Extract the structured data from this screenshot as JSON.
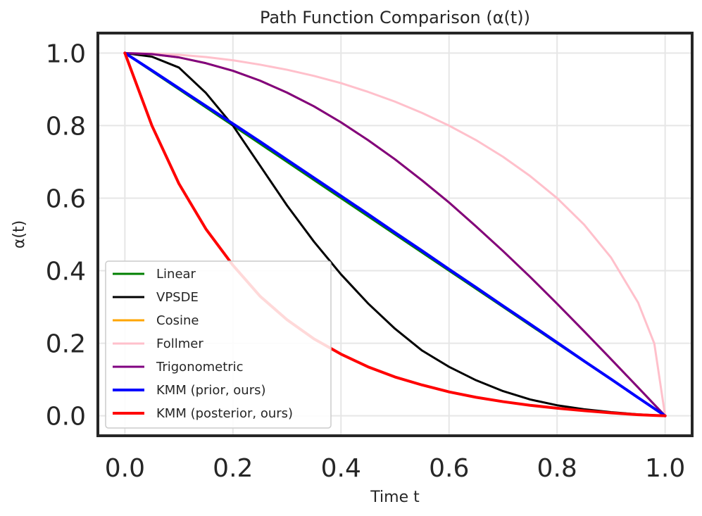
{
  "chart_data": {
    "type": "line",
    "title": "Path Function Comparison (α(t))",
    "xlabel": "Time t",
    "ylabel": "α(t)",
    "xlim": [
      -0.05,
      1.05
    ],
    "ylim": [
      -0.055,
      1.055
    ],
    "xticks": [
      0.0,
      0.2,
      0.4,
      0.6,
      0.8,
      1.0
    ],
    "xtick_labels": [
      "0.0",
      "0.2",
      "0.4",
      "0.6",
      "0.8",
      "1.0"
    ],
    "yticks": [
      0.0,
      0.2,
      0.4,
      0.6,
      0.8,
      1.0
    ],
    "ytick_labels": [
      "0.0",
      "0.2",
      "0.4",
      "0.6",
      "0.8",
      "1.0"
    ],
    "grid": true,
    "legend_position": "lower-left",
    "x": [
      0.0,
      0.05,
      0.1,
      0.15,
      0.2,
      0.25,
      0.3,
      0.35,
      0.4,
      0.45,
      0.5,
      0.55,
      0.6,
      0.65,
      0.7,
      0.75,
      0.8,
      0.85,
      0.9,
      0.95,
      0.98,
      1.0
    ],
    "series": [
      {
        "name": "Linear",
        "color": "#008000",
        "width": 3,
        "values": [
          1.0,
          0.95,
          0.9,
          0.85,
          0.8,
          0.75,
          0.7,
          0.65,
          0.6,
          0.55,
          0.5,
          0.45,
          0.4,
          0.35,
          0.3,
          0.25,
          0.2,
          0.15,
          0.1,
          0.05,
          0.02,
          0.0
        ]
      },
      {
        "name": "VPSDE",
        "color": "#000000",
        "width": 3,
        "values": [
          1.0,
          0.99,
          0.96,
          0.89,
          0.8,
          0.69,
          0.58,
          0.48,
          0.39,
          0.31,
          0.24,
          0.18,
          0.135,
          0.098,
          0.068,
          0.045,
          0.029,
          0.018,
          0.01,
          0.004,
          0.0015,
          0.0
        ]
      },
      {
        "name": "Cosine",
        "color": "#ffa500",
        "width": 3,
        "values": [
          1.0,
          0.997,
          0.988,
          0.972,
          0.951,
          0.924,
          0.891,
          0.853,
          0.809,
          0.76,
          0.707,
          0.649,
          0.588,
          0.522,
          0.454,
          0.383,
          0.309,
          0.233,
          0.156,
          0.078,
          0.031,
          0.0
        ]
      },
      {
        "name": "Follmer",
        "color": "#ffc0cb",
        "width": 3,
        "values": [
          1.0,
          0.999,
          0.995,
          0.989,
          0.98,
          0.968,
          0.954,
          0.937,
          0.917,
          0.893,
          0.866,
          0.835,
          0.8,
          0.76,
          0.714,
          0.661,
          0.6,
          0.527,
          0.436,
          0.312,
          0.199,
          0.0
        ]
      },
      {
        "name": "Trigonometric",
        "color": "#800080",
        "width": 3,
        "values": [
          1.0,
          0.997,
          0.988,
          0.972,
          0.951,
          0.924,
          0.891,
          0.853,
          0.809,
          0.76,
          0.707,
          0.649,
          0.588,
          0.522,
          0.454,
          0.383,
          0.309,
          0.233,
          0.156,
          0.078,
          0.031,
          0.0
        ]
      },
      {
        "name": "KMM (prior, ours)",
        "color": "#0000ff",
        "width": 4,
        "values": [
          1.0,
          0.952,
          0.903,
          0.854,
          0.805,
          0.756,
          0.706,
          0.656,
          0.606,
          0.556,
          0.505,
          0.455,
          0.404,
          0.354,
          0.303,
          0.253,
          0.202,
          0.151,
          0.101,
          0.05,
          0.02,
          0.0
        ]
      },
      {
        "name": "KMM (posterior, ours)",
        "color": "#ff0000",
        "width": 4,
        "values": [
          1.0,
          0.8,
          0.64,
          0.515,
          0.415,
          0.33,
          0.265,
          0.212,
          0.17,
          0.135,
          0.107,
          0.085,
          0.066,
          0.051,
          0.039,
          0.029,
          0.021,
          0.014,
          0.008,
          0.003,
          0.001,
          0.0
        ]
      }
    ]
  }
}
